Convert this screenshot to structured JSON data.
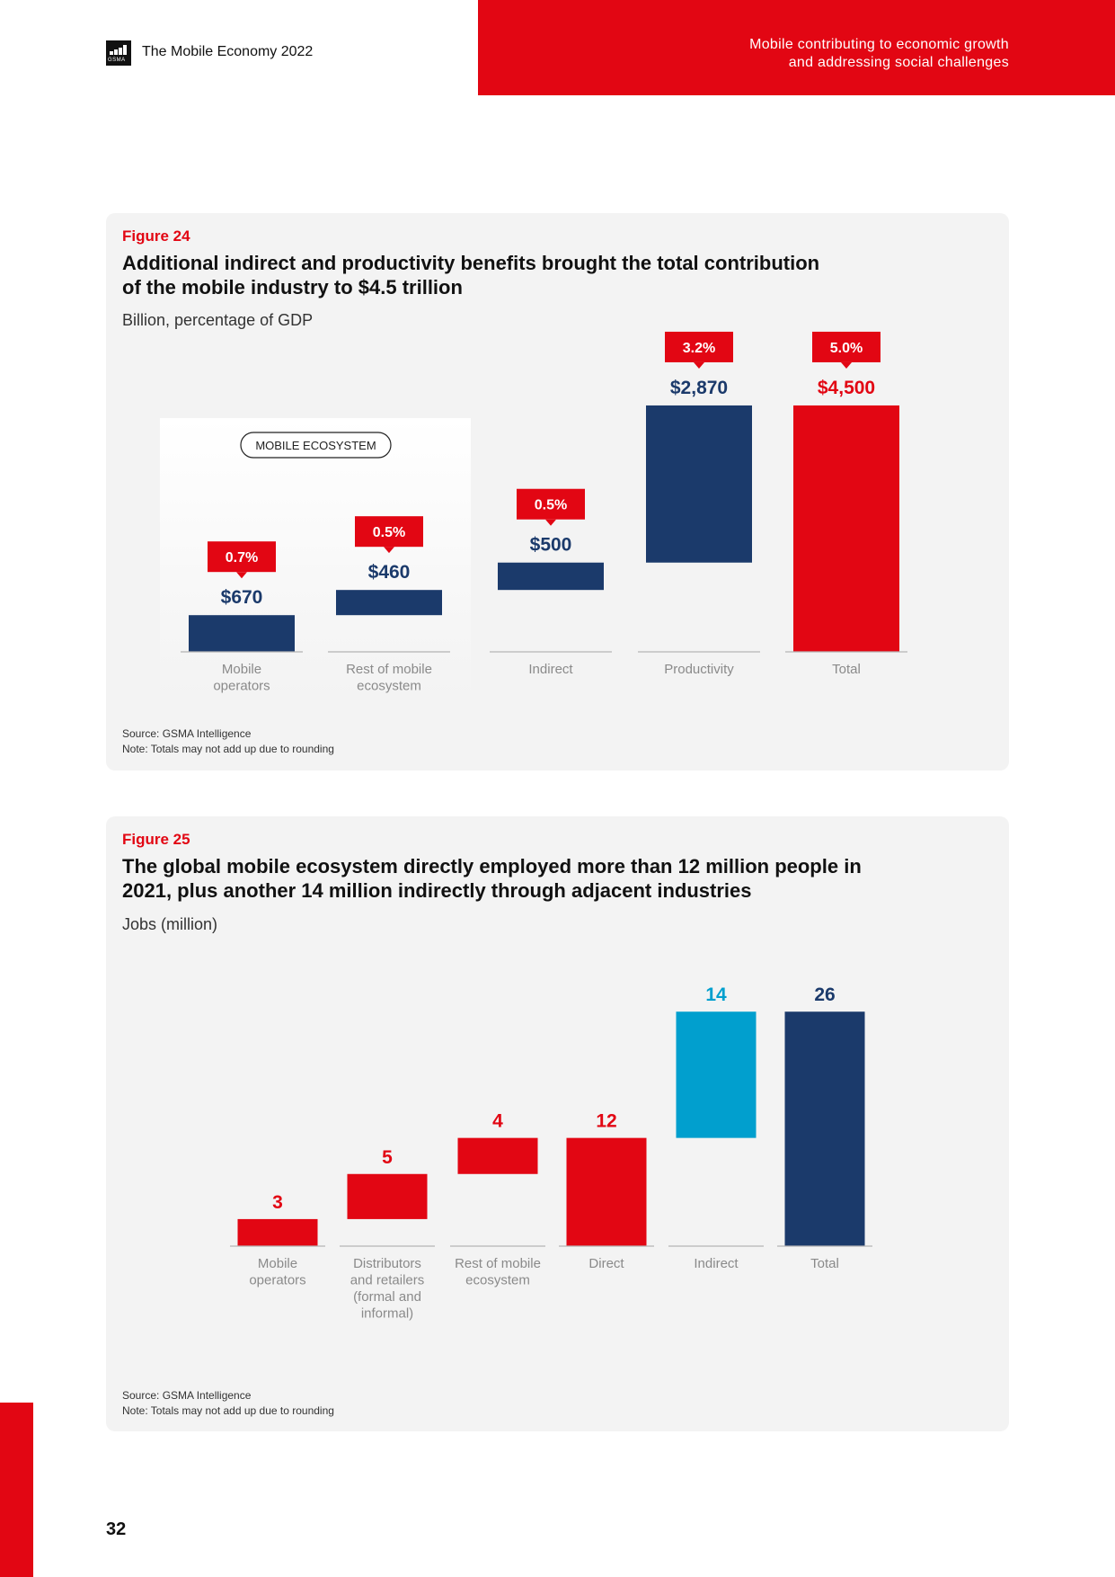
{
  "header": {
    "doc_title": "The Mobile Economy 2022",
    "logo_text": "GSMA",
    "section_title_line1": "Mobile contributing to economic growth",
    "section_title_line2": "and addressing social challenges"
  },
  "colors": {
    "brand_red": "#e20613",
    "navy": "#1b3a6b",
    "light_blue": "#019fce",
    "card_bg": "#f3f3f3",
    "axis_label_gray": "#8a8a8a"
  },
  "figure24": {
    "label": "Figure 24",
    "title_line1": "Additional indirect and productivity benefits brought the total contribution",
    "title_line2": "of the mobile industry to $4.5 trillion",
    "subtitle": "Billion, percentage of GDP",
    "source": "Source: GSMA Intelligence",
    "note": "Note: Totals may not add up due to rounding"
  },
  "figure25": {
    "label": "Figure 25",
    "title_line1": "The global mobile ecosystem directly employed more than 12 million people in",
    "title_line2": "2021, plus another 14 million indirectly through adjacent industries",
    "subtitle": "Jobs (million)",
    "source": "Source: GSMA Intelligence",
    "note": "Note: Totals may not add up due to rounding"
  },
  "chart_data": [
    {
      "type": "bar",
      "subtype": "waterfall",
      "title": "Additional indirect and productivity benefits brought the total contribution of the mobile industry to $4.5 trillion",
      "subtitle": "Billion, percentage of GDP",
      "group_label": "MOBILE ECOSYSTEM",
      "group_members": [
        "Mobile operators",
        "Rest of mobile ecosystem"
      ],
      "categories": [
        "Mobile operators",
        "Rest of mobile ecosystem",
        "Indirect",
        "Productivity",
        "Total"
      ],
      "category_lines": [
        [
          "Mobile",
          "operators"
        ],
        [
          "Rest of mobile",
          "ecosystem"
        ],
        [
          "Indirect"
        ],
        [
          "Productivity"
        ],
        [
          "Total"
        ]
      ],
      "values": [
        670,
        460,
        500,
        2870,
        4500
      ],
      "value_labels": [
        "$670",
        "$460",
        "$500",
        "$2,870",
        "$4,500"
      ],
      "gdp_share_labels": [
        "0.7%",
        "0.5%",
        "0.5%",
        "3.2%",
        "5.0%"
      ],
      "bar_colors": [
        "#1b3a6b",
        "#1b3a6b",
        "#1b3a6b",
        "#1b3a6b",
        "#e20613"
      ],
      "value_label_colors": [
        "#1b3a6b",
        "#1b3a6b",
        "#1b3a6b",
        "#1b3a6b",
        "#e20613"
      ],
      "is_total": [
        false,
        false,
        false,
        false,
        true
      ]
    },
    {
      "type": "bar",
      "subtype": "waterfall",
      "title": "The global mobile ecosystem directly employed more than 12 million people in 2021, plus another 14 million indirectly through adjacent industries",
      "subtitle": "Jobs (million)",
      "categories": [
        "Mobile operators",
        "Distributors and retailers (formal and informal)",
        "Rest of mobile ecosystem",
        "Direct",
        "Indirect",
        "Total"
      ],
      "category_lines": [
        [
          "Mobile",
          "operators"
        ],
        [
          "Distributors",
          "and retailers",
          "(formal and",
          "informal)"
        ],
        [
          "Rest of mobile",
          "ecosystem"
        ],
        [
          "Direct"
        ],
        [
          "Indirect"
        ],
        [
          "Total"
        ]
      ],
      "values": [
        3,
        5,
        4,
        12,
        14,
        26
      ],
      "value_labels": [
        "3",
        "5",
        "4",
        "12",
        "14",
        "26"
      ],
      "bar_colors": [
        "#e20613",
        "#e20613",
        "#e20613",
        "#e20613",
        "#019fce",
        "#1b3a6b"
      ],
      "value_label_colors": [
        "#e20613",
        "#e20613",
        "#e20613",
        "#e20613",
        "#019fce",
        "#1b3a6b"
      ],
      "is_total": [
        false,
        false,
        false,
        true,
        false,
        true
      ]
    }
  ]
}
